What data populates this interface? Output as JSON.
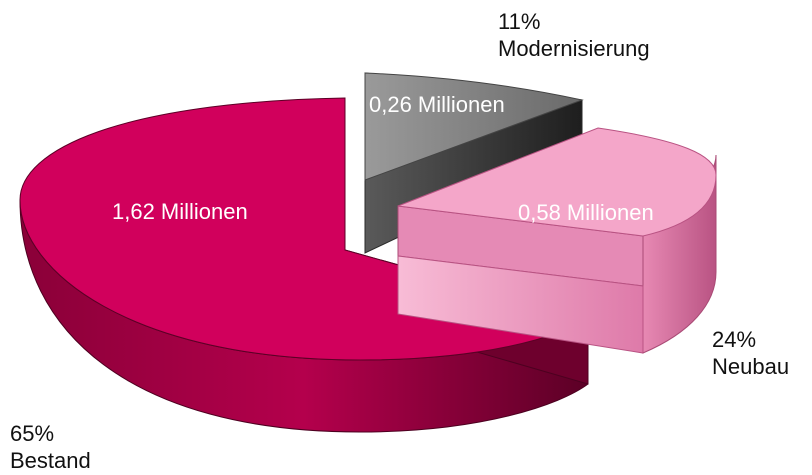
{
  "chart_data": {
    "type": "pie",
    "title": "",
    "slices": [
      {
        "key": "modernisierung",
        "percent_label": "11%",
        "name": "Modernisierung",
        "value_label": "0,26 Millionen",
        "value": 0.26,
        "percent": 11,
        "color": "#8e8e8e"
      },
      {
        "key": "neubau",
        "percent_label": "24%",
        "name": "Neubau",
        "value_label": "0,58 Millionen",
        "value": 0.58,
        "percent": 24,
        "color": "#f4a6c9"
      },
      {
        "key": "bestand",
        "percent_label": "65%",
        "name": "Bestand",
        "value_label": "1,62 Millionen",
        "value": 1.62,
        "percent": 65,
        "color": "#d1005c"
      }
    ]
  }
}
